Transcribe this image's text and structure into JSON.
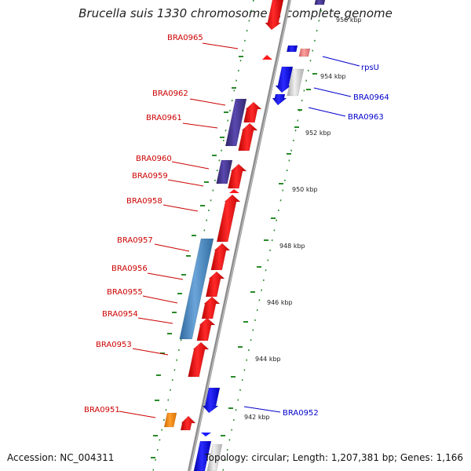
{
  "title": "Brucella suis 1330 chromosome II, complete genome",
  "footer": {
    "accession": "Accession: NC_004311",
    "summary": "Topology: circular; Length: 1,207,381 bp; Genes: 1,166"
  },
  "colors": {
    "forward_cds": "#ff0000",
    "reverse_cds": "#0000ff",
    "forward_label": "#cc0000",
    "reverse_label": "#0000cc",
    "backbone": "#888888",
    "tick": "#2a8a2a",
    "purple_feature": "#4b3a9a",
    "steelblue_feature": "#4a86c0",
    "orange_feature": "#ff8c00",
    "grey_feature": "#c8c8c8"
  },
  "scale_labels": [
    "956 kbp",
    "954 kbp",
    "952 kbp",
    "950 kbp",
    "948 kbp",
    "946 kbp",
    "944 kbp",
    "942 kbp"
  ],
  "forward_genes": [
    "BRA0965",
    "BRA0962",
    "BRA0961",
    "BRA0960",
    "BRA0959",
    "BRA0958",
    "BRA0957",
    "BRA0956",
    "BRA0955",
    "BRA0954",
    "BRA0953",
    "BRA0951"
  ],
  "reverse_genes": [
    "rpsU",
    "BRA0964",
    "BRA0963",
    "BRA0952"
  ]
}
